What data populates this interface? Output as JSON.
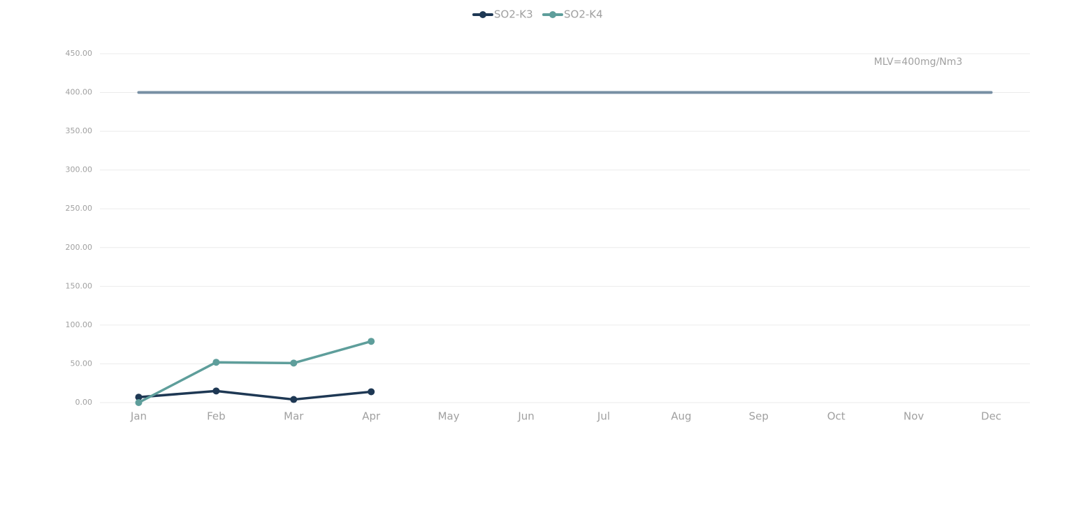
{
  "chart_data": {
    "type": "line",
    "categories": [
      "Jan",
      "Feb",
      "Mar",
      "Apr",
      "May",
      "Jun",
      "Jul",
      "Aug",
      "Sep",
      "Oct",
      "Nov",
      "Dec"
    ],
    "series": [
      {
        "name": "SO2-K3",
        "color": "#1e3854",
        "values": [
          7,
          15,
          4,
          14,
          null,
          null,
          null,
          null,
          null,
          null,
          null,
          null
        ]
      },
      {
        "name": "SO2-K4",
        "color": "#5e9e9b",
        "values": [
          0,
          52,
          51,
          79,
          null,
          null,
          null,
          null,
          null,
          null,
          null,
          null
        ]
      }
    ],
    "reference_line": {
      "value": 400,
      "label": "MLV=400mg/Nm3",
      "color": "#7890a4"
    },
    "ylim": [
      0,
      450
    ],
    "yticks": [
      {
        "value": 0,
        "label": "0.00"
      },
      {
        "value": 50,
        "label": "50.00"
      },
      {
        "value": 100,
        "label": "100.00"
      },
      {
        "value": 150,
        "label": "150.00"
      },
      {
        "value": 200,
        "label": "200.00"
      },
      {
        "value": 250,
        "label": "250.00"
      },
      {
        "value": 300,
        "label": "300.00"
      },
      {
        "value": 350,
        "label": "350.00"
      },
      {
        "value": 400,
        "label": "400.00"
      },
      {
        "value": 450,
        "label": "450.00"
      }
    ],
    "grid": true,
    "legend": "top"
  }
}
